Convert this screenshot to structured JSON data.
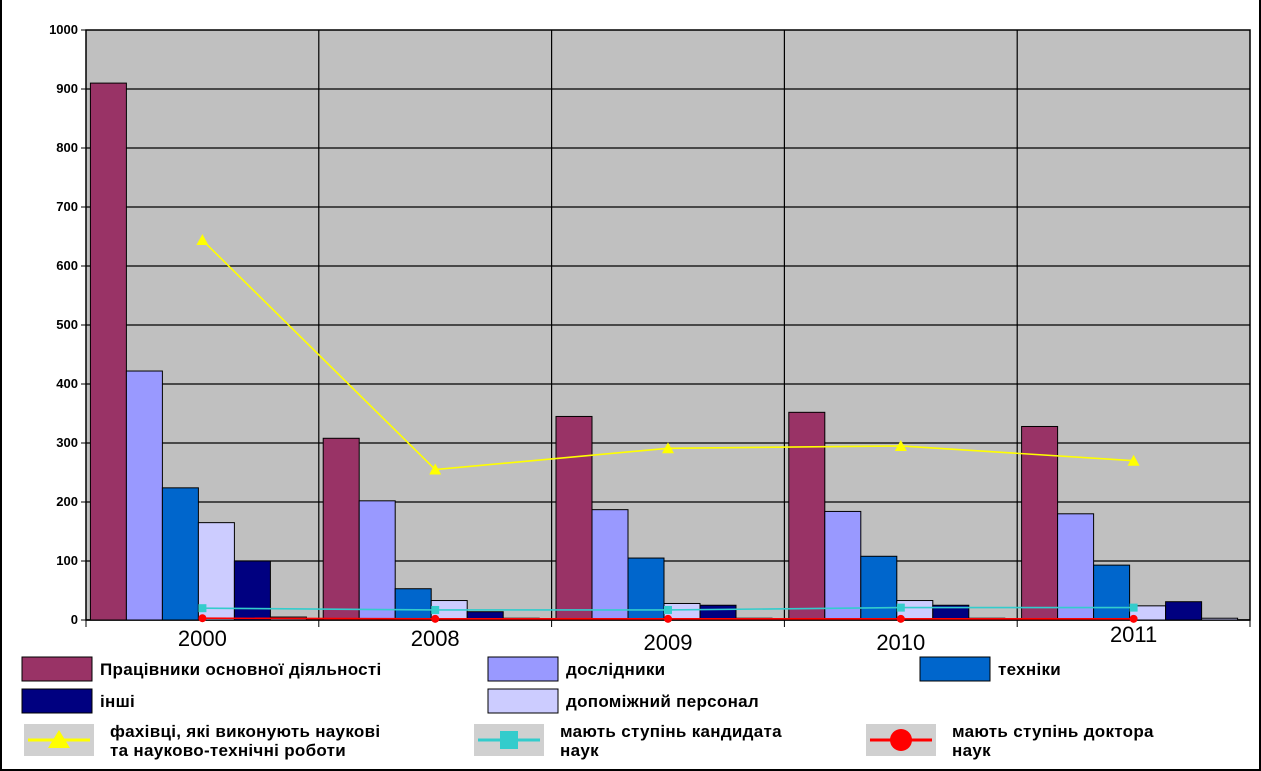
{
  "chart_data": {
    "type": "bar",
    "title": "",
    "xlabel": "",
    "ylabel": "",
    "ylim": [
      0,
      1000
    ],
    "yticks": [
      0,
      100,
      200,
      300,
      400,
      500,
      600,
      700,
      800,
      900,
      1000
    ],
    "grid": true,
    "legend_position": "bottom",
    "categories": [
      "2000",
      "2008",
      "2009",
      "2010",
      "2011"
    ],
    "series": [
      {
        "name": "Працівники основної діяльності",
        "kind": "bar",
        "color": "#993366",
        "values": [
          910,
          308,
          345,
          352,
          328
        ]
      },
      {
        "name": "дослідники",
        "kind": "bar",
        "color": "#9999FF",
        "values": [
          422,
          202,
          187,
          184,
          180
        ]
      },
      {
        "name": "техніки",
        "kind": "bar",
        "color": "#0066CC",
        "values": [
          224,
          53,
          105,
          108,
          93
        ]
      },
      {
        "name": "",
        "kind": "bar",
        "color": "#CCCCFF",
        "values": [
          165,
          33,
          28,
          33,
          24
        ]
      },
      {
        "name": "інші",
        "kind": "bar",
        "color": "#000080",
        "values": [
          100,
          14,
          25,
          25,
          31
        ]
      },
      {
        "name": "допоміжний персонал",
        "kind": "bar",
        "color": "#CCCCFF",
        "values": [
          5,
          3,
          3,
          3,
          3
        ]
      },
      {
        "name": "фахівці, які виконують наукові та науково-технічні роботи",
        "kind": "line",
        "marker": "triangle",
        "color": "#FFFF00",
        "values": [
          644,
          255,
          291,
          295,
          270
        ]
      },
      {
        "name": "мають ступінь кандидата наук",
        "kind": "line",
        "marker": "square",
        "color": "#33CCCC",
        "values": [
          20,
          17,
          17,
          21,
          21
        ]
      },
      {
        "name": "мають ступінь доктора наук",
        "kind": "line",
        "marker": "circle",
        "color": "#FF0000",
        "values": [
          3,
          2,
          2,
          2,
          2
        ]
      }
    ]
  },
  "legend": {
    "rows": [
      [
        "Працівники основної діяльності",
        "дослідники",
        "техніки"
      ],
      [
        "інші",
        "допоміжний персонал"
      ],
      [
        "фахівці, які виконують наукові|та науково-технічні роботи",
        "мають ступінь кандидата|наук",
        "мають ступінь доктора|наук"
      ]
    ]
  }
}
